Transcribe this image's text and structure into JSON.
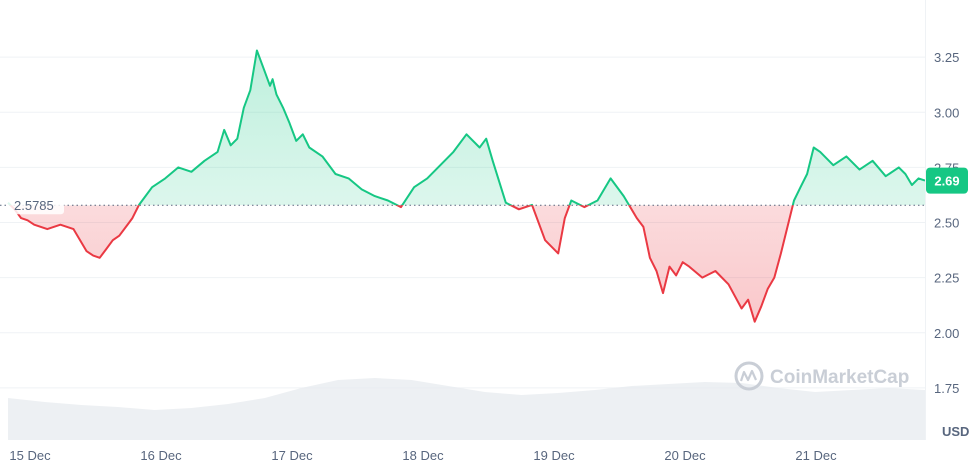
{
  "chart_data": {
    "type": "line",
    "baseline": 2.5785,
    "baseline_label": "2.5785",
    "current_value_label": "2.69",
    "unit_label": "USD",
    "watermark_text": "CoinMarketCap",
    "x_ticks": [
      "15 Dec",
      "16 Dec",
      "17 Dec",
      "18 Dec",
      "19 Dec",
      "20 Dec",
      "21 Dec"
    ],
    "y_ticks": [
      "3.25",
      "3.00",
      "2.75",
      "2.50",
      "2.25",
      "2.00",
      "1.75"
    ],
    "y_tick_values": [
      3.25,
      3.0,
      2.75,
      2.5,
      2.25,
      2.0,
      1.75
    ],
    "ylim": [
      1.55,
      3.5
    ],
    "xlim": [
      0,
      7.0
    ],
    "grid": true,
    "colors": {
      "up": "#16c784",
      "down": "#ea3943",
      "grid": "#eff2f5",
      "text": "#58667e",
      "badge": "#16c784",
      "volume": "#e6e9ee"
    },
    "series": [
      {
        "x": [
          0.0,
          0.05,
          0.1,
          0.15,
          0.2,
          0.3,
          0.4,
          0.5,
          0.55,
          0.6,
          0.65,
          0.7,
          0.75,
          0.8,
          0.85,
          0.9,
          0.95,
          1.0,
          1.05,
          1.1,
          1.2,
          1.3,
          1.4,
          1.5,
          1.6,
          1.65,
          1.7,
          1.75,
          1.8,
          1.85,
          1.9,
          1.95,
          2.0,
          2.02,
          2.05,
          2.1,
          2.15,
          2.2,
          2.25,
          2.3,
          2.4,
          2.5,
          2.6,
          2.7,
          2.8,
          2.9,
          3.0,
          3.1,
          3.2,
          3.3,
          3.4,
          3.5,
          3.6,
          3.65,
          3.7,
          3.8,
          3.9,
          4.0,
          4.1,
          4.2,
          4.25,
          4.3,
          4.4,
          4.5,
          4.6,
          4.7,
          4.8,
          4.85,
          4.9,
          4.95,
          5.0,
          5.05,
          5.1,
          5.15,
          5.2,
          5.3,
          5.4,
          5.5,
          5.6,
          5.65,
          5.7,
          5.75,
          5.8,
          5.85,
          5.9,
          6.0,
          6.05,
          6.1,
          6.15,
          6.2,
          6.3,
          6.4,
          6.5,
          6.6,
          6.7,
          6.8,
          6.85,
          6.9,
          6.95,
          7.0
        ],
        "values": [
          2.59,
          2.56,
          2.52,
          2.51,
          2.49,
          2.47,
          2.49,
          2.47,
          2.42,
          2.37,
          2.35,
          2.34,
          2.38,
          2.42,
          2.44,
          2.48,
          2.52,
          2.58,
          2.62,
          2.66,
          2.7,
          2.75,
          2.73,
          2.78,
          2.82,
          2.92,
          2.85,
          2.88,
          3.02,
          3.1,
          3.28,
          3.2,
          3.12,
          3.15,
          3.08,
          3.02,
          2.95,
          2.87,
          2.9,
          2.84,
          2.8,
          2.72,
          2.7,
          2.65,
          2.62,
          2.6,
          2.57,
          2.66,
          2.7,
          2.76,
          2.82,
          2.9,
          2.84,
          2.88,
          2.78,
          2.59,
          2.56,
          2.58,
          2.42,
          2.36,
          2.52,
          2.6,
          2.57,
          2.6,
          2.7,
          2.62,
          2.52,
          2.48,
          2.34,
          2.28,
          2.18,
          2.3,
          2.26,
          2.32,
          2.3,
          2.25,
          2.28,
          2.22,
          2.11,
          2.15,
          2.05,
          2.12,
          2.2,
          2.25,
          2.36,
          2.6,
          2.66,
          2.72,
          2.84,
          2.82,
          2.76,
          2.8,
          2.74,
          2.78,
          2.71,
          2.75,
          2.72,
          2.67,
          2.7,
          2.69
        ]
      }
    ]
  }
}
